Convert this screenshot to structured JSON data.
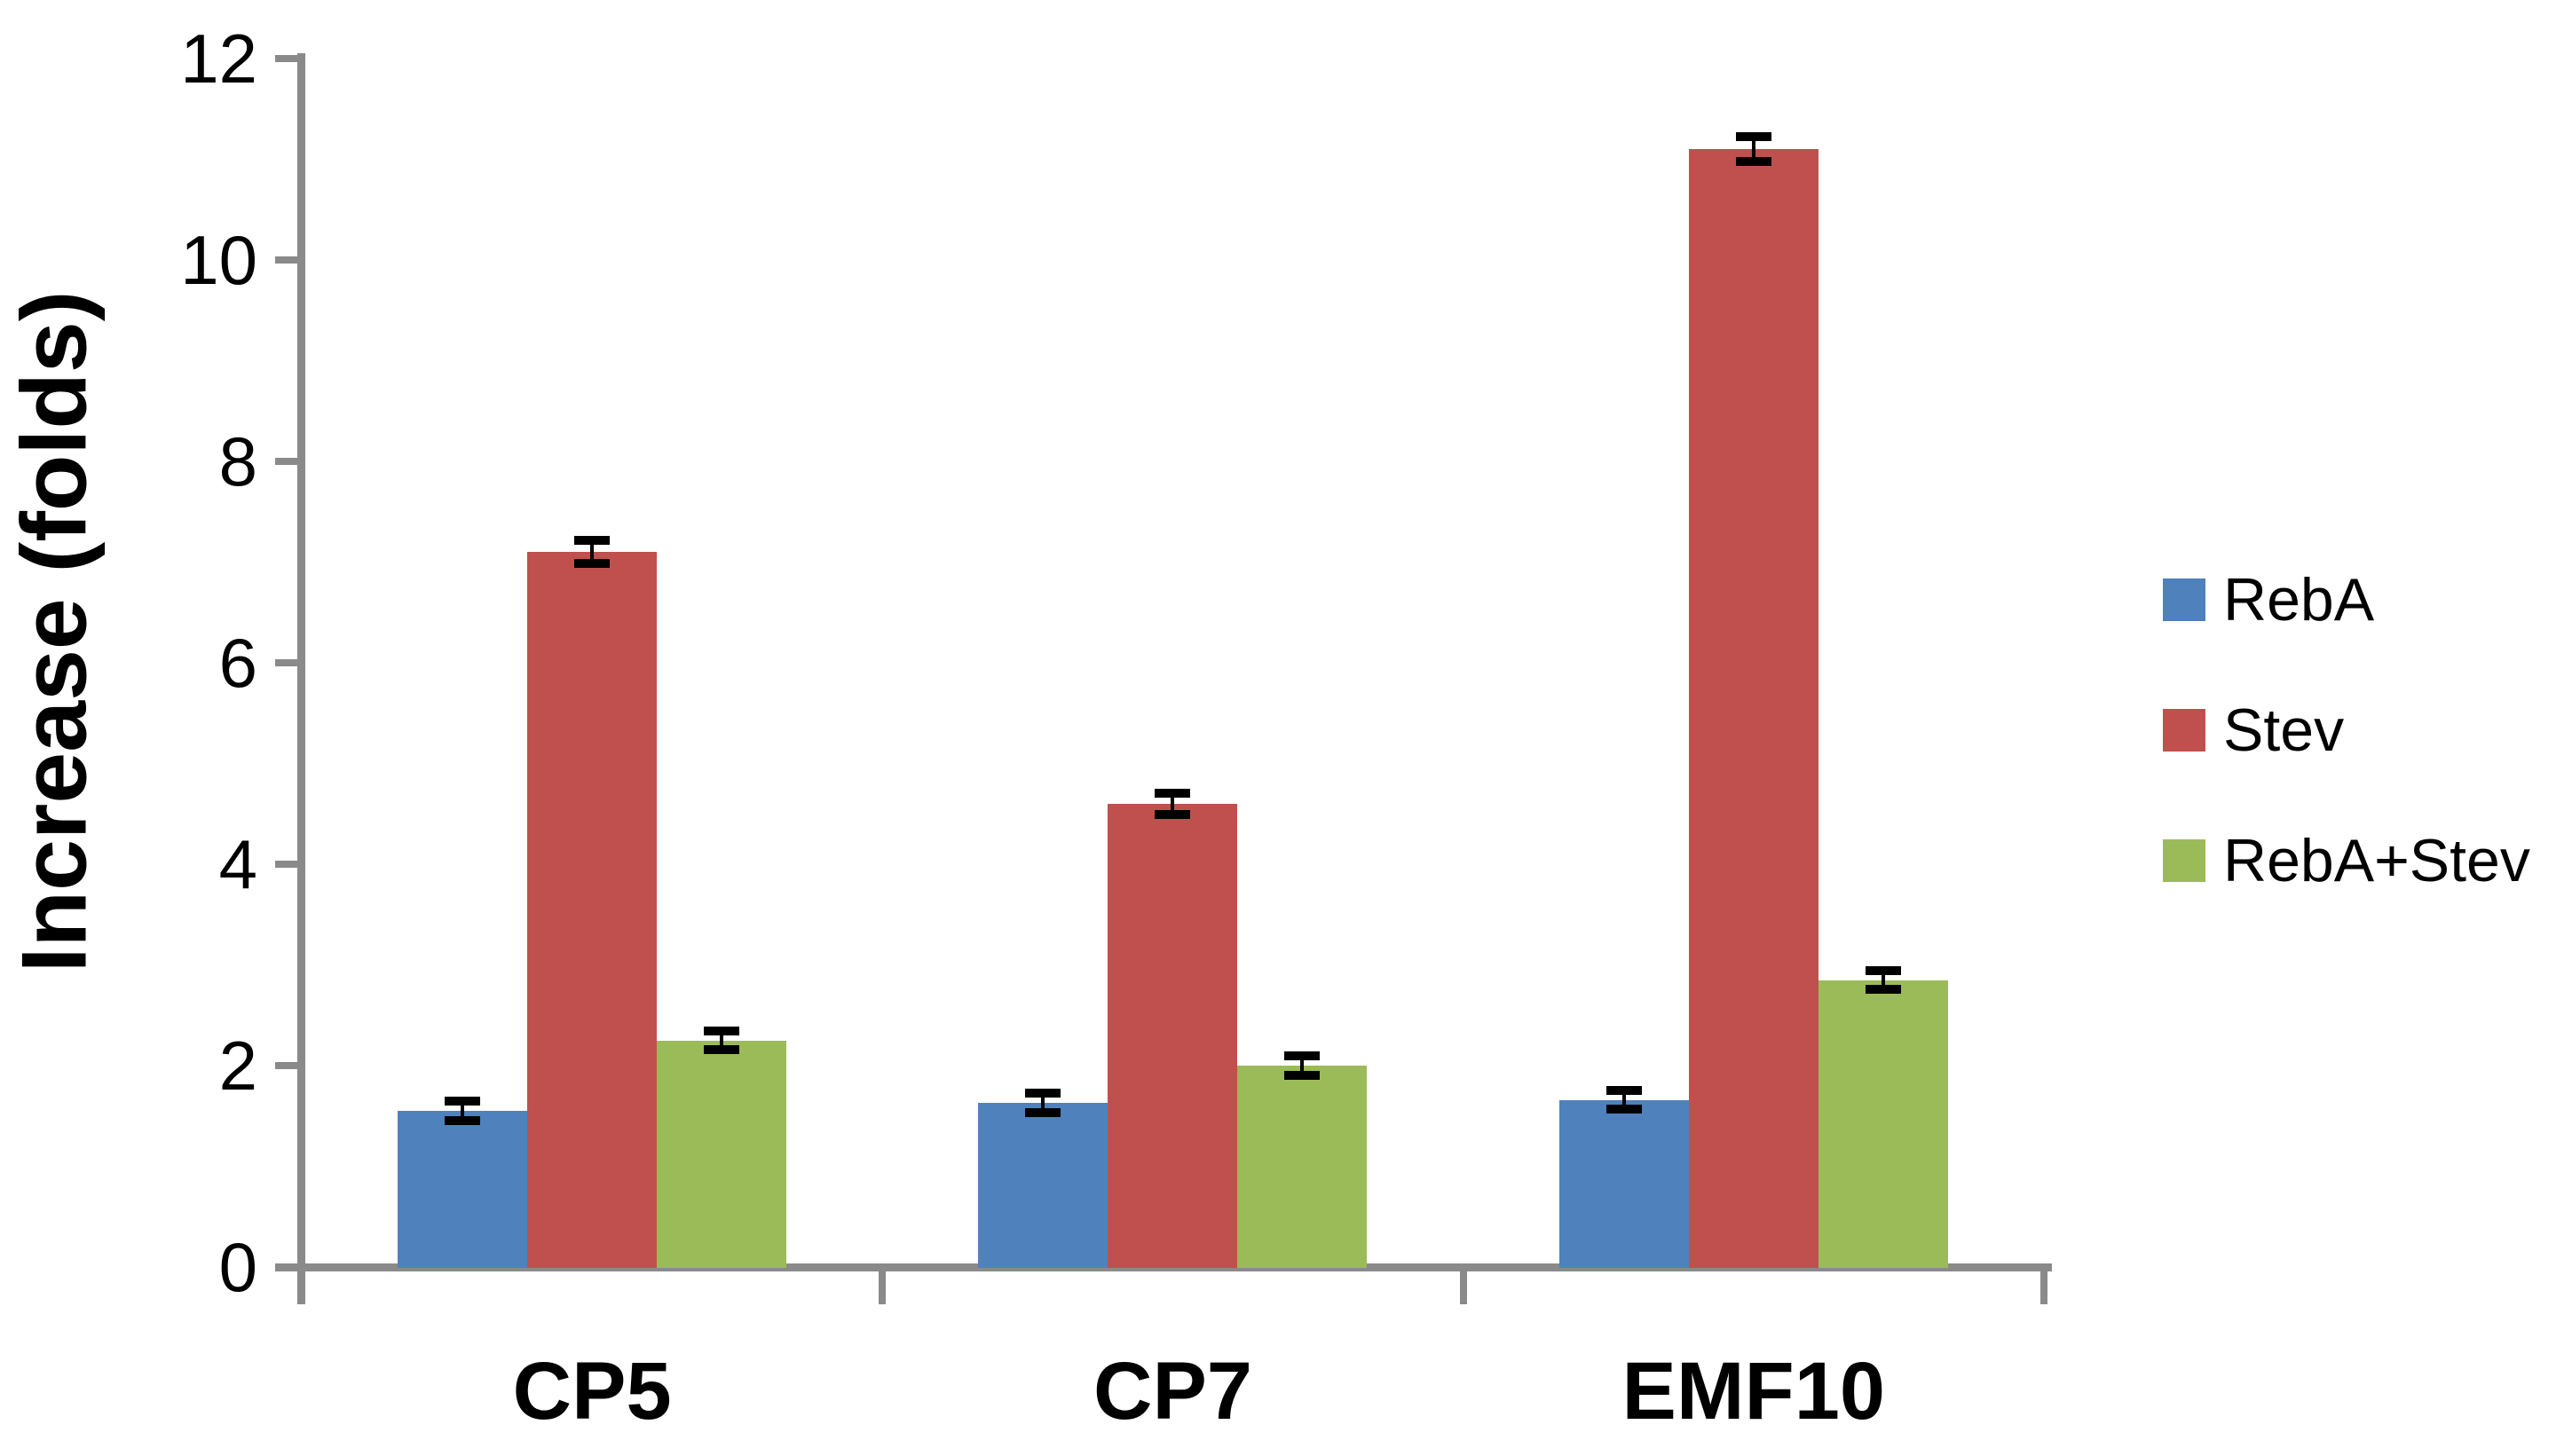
{
  "chart_data": {
    "type": "bar",
    "title": "",
    "categories": [
      "CP5",
      "CP7",
      "EMF10"
    ],
    "series": [
      {
        "name": "RebA",
        "color": "#4F81BD",
        "values": [
          1.55,
          1.63,
          1.66
        ],
        "errors": [
          0.05,
          0.05,
          0.05
        ]
      },
      {
        "name": "Stev",
        "color": "#C0504D",
        "values": [
          7.1,
          4.6,
          11.1
        ],
        "errors": [
          0.07,
          0.06,
          0.08
        ]
      },
      {
        "name": "RebA+Stev",
        "color": "#9BBB59",
        "values": [
          2.25,
          2.0,
          2.85
        ],
        "errors": [
          0.05,
          0.05,
          0.05
        ]
      }
    ],
    "xlabel": "",
    "ylabel": "Increase (folds)",
    "ylim": [
      0,
      12
    ],
    "ytick_step": 2,
    "yticks": [
      0,
      2,
      4,
      6,
      8,
      10,
      12
    ],
    "grid": false,
    "legend_position": "right",
    "error_bar_color": "#000000",
    "axis_color": "#8A8A8A",
    "text_color": "#000000",
    "background_color": "#FFFFFF"
  }
}
